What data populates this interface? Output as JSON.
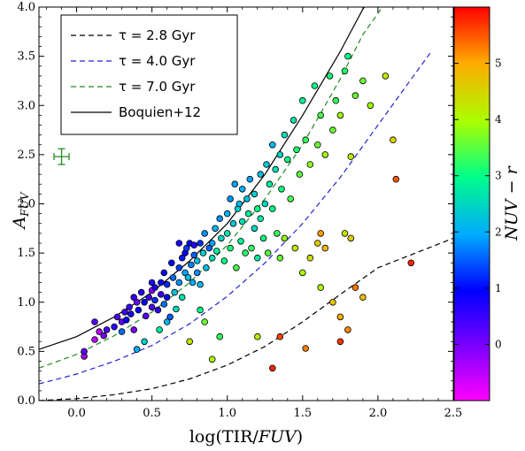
{
  "chart_data": {
    "type": "scatter",
    "xlabel": "log(TIR/FUV)",
    "ylabel": "A_FUV",
    "xlim": [
      -0.25,
      2.5
    ],
    "ylim": [
      0.0,
      4.0
    ],
    "xticks": [
      0.0,
      0.5,
      1.0,
      1.5,
      2.0,
      2.5
    ],
    "xtick_labels": [
      "0.0",
      "0.5",
      "1.0",
      "1.5",
      "2.0",
      "2.5"
    ],
    "yticks": [
      0.0,
      0.5,
      1.0,
      1.5,
      2.0,
      2.5,
      3.0,
      3.5,
      4.0
    ],
    "ytick_labels": [
      "0.0",
      "0.5",
      "1.0",
      "1.5",
      "2.0",
      "2.5",
      "3.0",
      "3.5",
      "4.0"
    ],
    "grid": false,
    "legend_position": "top-left",
    "colorbar": {
      "label": "NUV − r",
      "range": [
        -1.0,
        6.0
      ],
      "ticks": [
        0,
        1,
        2,
        3,
        4,
        5
      ],
      "tick_labels": [
        "0",
        "1",
        "2",
        "3",
        "4",
        "5"
      ],
      "colormap": "gist_rainbow"
    },
    "legend": [
      {
        "label": "τ = 2.8 Gyr",
        "color": "#000000",
        "dash": true
      },
      {
        "label": "τ = 4.0 Gyr",
        "color": "#2222cc",
        "dash": true
      },
      {
        "label": "τ = 7.0 Gyr",
        "color": "#228b22",
        "dash": true
      },
      {
        "label": "Boquien+12",
        "color": "#000000",
        "dash": false
      }
    ],
    "curves": [
      {
        "name": "τ = 2.8 Gyr",
        "color": "#000000",
        "dash": true,
        "points": [
          [
            -0.25,
            0.0
          ],
          [
            0.0,
            0.02
          ],
          [
            0.25,
            0.06
          ],
          [
            0.5,
            0.12
          ],
          [
            0.75,
            0.22
          ],
          [
            1.0,
            0.36
          ],
          [
            1.25,
            0.55
          ],
          [
            1.5,
            0.8
          ],
          [
            1.75,
            1.08
          ],
          [
            2.0,
            1.35
          ],
          [
            2.25,
            1.5
          ],
          [
            2.5,
            1.65
          ]
        ]
      },
      {
        "name": "τ = 4.0 Gyr",
        "color": "#2222cc",
        "dash": true,
        "points": [
          [
            -0.25,
            0.17
          ],
          [
            0.0,
            0.27
          ],
          [
            0.25,
            0.4
          ],
          [
            0.5,
            0.56
          ],
          [
            0.75,
            0.78
          ],
          [
            1.0,
            1.06
          ],
          [
            1.25,
            1.4
          ],
          [
            1.5,
            1.8
          ],
          [
            1.75,
            2.27
          ],
          [
            2.0,
            2.8
          ],
          [
            2.25,
            3.33
          ],
          [
            2.35,
            3.54
          ]
        ]
      },
      {
        "name": "τ = 7.0 Gyr",
        "color": "#228b22",
        "dash": true,
        "points": [
          [
            -0.25,
            0.33
          ],
          [
            0.0,
            0.47
          ],
          [
            0.25,
            0.66
          ],
          [
            0.5,
            0.9
          ],
          [
            0.75,
            1.2
          ],
          [
            1.0,
            1.58
          ],
          [
            1.25,
            2.05
          ],
          [
            1.5,
            2.6
          ],
          [
            1.75,
            3.27
          ],
          [
            1.9,
            3.72
          ],
          [
            2.03,
            4.0
          ]
        ]
      },
      {
        "name": "Boquien+12",
        "color": "#000000",
        "dash": false,
        "points": [
          [
            -0.25,
            0.52
          ],
          [
            0.0,
            0.65
          ],
          [
            0.25,
            0.85
          ],
          [
            0.5,
            1.1
          ],
          [
            0.75,
            1.42
          ],
          [
            1.0,
            1.8
          ],
          [
            1.25,
            2.3
          ],
          [
            1.5,
            2.9
          ],
          [
            1.75,
            3.55
          ],
          [
            1.9,
            3.98
          ],
          [
            1.91,
            4.0
          ]
        ]
      }
    ],
    "errorbar": {
      "x": -0.1,
      "y": 2.48,
      "xerr": 0.05,
      "yerr": 0.08,
      "color": "#228b22"
    },
    "points": [
      [
        0.05,
        0.45,
        -0.3
      ],
      [
        0.05,
        0.5,
        0.2
      ],
      [
        0.12,
        0.62,
        -0.5
      ],
      [
        0.18,
        0.66,
        0.0
      ],
      [
        0.2,
        0.72,
        0.4
      ],
      [
        0.12,
        0.8,
        0.3
      ],
      [
        0.25,
        0.75,
        0.6
      ],
      [
        0.27,
        0.85,
        0.3
      ],
      [
        0.3,
        0.8,
        0.2
      ],
      [
        0.32,
        0.9,
        0.5
      ],
      [
        0.35,
        0.95,
        0.5
      ],
      [
        0.36,
        0.88,
        0.8
      ],
      [
        0.38,
        1.05,
        0.6
      ],
      [
        0.4,
        1.0,
        0.1
      ],
      [
        0.41,
        0.92,
        0.9
      ],
      [
        0.43,
        1.1,
        0.7
      ],
      [
        0.45,
        1.0,
        1.0
      ],
      [
        0.46,
        0.86,
        0.3
      ],
      [
        0.48,
        1.05,
        0.5
      ],
      [
        0.5,
        1.12,
        -0.2
      ],
      [
        0.5,
        0.95,
        0.4
      ],
      [
        0.52,
        1.15,
        0.8
      ],
      [
        0.52,
        1.02,
        1.2
      ],
      [
        0.54,
        0.92,
        0.6
      ],
      [
        0.56,
        1.2,
        1.0
      ],
      [
        0.56,
        1.08,
        0.5
      ],
      [
        0.58,
        1.3,
        0.8
      ],
      [
        0.6,
        1.18,
        1.2
      ],
      [
        0.6,
        1.05,
        0.9
      ],
      [
        0.62,
        0.85,
        1.5
      ],
      [
        0.63,
        1.4,
        1.0
      ],
      [
        0.64,
        1.25,
        1.6
      ],
      [
        0.65,
        1.1,
        2.3
      ],
      [
        0.66,
        0.93,
        2.5
      ],
      [
        0.68,
        1.35,
        1.3
      ],
      [
        0.68,
        1.2,
        1.8
      ],
      [
        0.7,
        1.45,
        1.1
      ],
      [
        0.7,
        1.05,
        2.6
      ],
      [
        0.72,
        1.3,
        1.9
      ],
      [
        0.72,
        1.5,
        0.9
      ],
      [
        0.73,
        1.55,
        1.3
      ],
      [
        0.74,
        1.25,
        2.2
      ],
      [
        0.75,
        1.6,
        0.9
      ],
      [
        0.76,
        1.38,
        1.7
      ],
      [
        0.77,
        1.2,
        2.0
      ],
      [
        0.78,
        1.48,
        1.5
      ],
      [
        0.78,
        1.58,
        0.7
      ],
      [
        0.8,
        1.42,
        2.2
      ],
      [
        0.8,
        1.3,
        1.8
      ],
      [
        0.82,
        1.6,
        1.2
      ],
      [
        0.82,
        1.18,
        2.1
      ],
      [
        0.84,
        1.5,
        2.4
      ],
      [
        0.85,
        1.7,
        1.8
      ],
      [
        0.86,
        1.35,
        2.2
      ],
      [
        0.88,
        1.55,
        1.5
      ],
      [
        0.9,
        1.6,
        1.9
      ],
      [
        0.9,
        1.45,
        2.6
      ],
      [
        0.92,
        1.75,
        2.1
      ],
      [
        0.93,
        1.52,
        2.8
      ],
      [
        0.95,
        1.85,
        1.8
      ],
      [
        0.96,
        1.65,
        2.5
      ],
      [
        0.98,
        1.42,
        3.0
      ],
      [
        1.0,
        1.9,
        2.0
      ],
      [
        1.0,
        1.7,
        2.7
      ],
      [
        1.02,
        2.05,
        1.8
      ],
      [
        1.02,
        1.55,
        3.1
      ],
      [
        1.04,
        1.8,
        2.3
      ],
      [
        1.05,
        2.2,
        1.9
      ],
      [
        1.06,
        1.35,
        3.4
      ],
      [
        1.07,
        1.95,
        2.4
      ],
      [
        1.08,
        2.0,
        2.1
      ],
      [
        1.09,
        1.62,
        2.9
      ],
      [
        1.1,
        2.15,
        2.0
      ],
      [
        1.1,
        1.82,
        2.6
      ],
      [
        1.12,
        1.5,
        3.2
      ],
      [
        1.13,
        2.05,
        2.2
      ],
      [
        1.14,
        1.9,
        2.8
      ],
      [
        1.15,
        2.25,
        1.9
      ],
      [
        1.16,
        1.55,
        3.3
      ],
      [
        1.18,
        1.75,
        2.5
      ],
      [
        1.18,
        2.1,
        2.4
      ],
      [
        1.2,
        1.45,
        2.7
      ],
      [
        1.2,
        1.95,
        3.0
      ],
      [
        1.22,
        2.3,
        2.2
      ],
      [
        1.22,
        1.85,
        2.7
      ],
      [
        1.24,
        1.65,
        3.1
      ],
      [
        1.25,
        2.0,
        2.5
      ],
      [
        1.26,
        2.4,
        2.3
      ],
      [
        1.27,
        1.5,
        3.5
      ],
      [
        1.28,
        2.2,
        2.8
      ],
      [
        1.3,
        2.6,
        2.1
      ],
      [
        1.3,
        1.95,
        3.0
      ],
      [
        1.32,
        2.35,
        2.6
      ],
      [
        1.33,
        1.7,
        3.3
      ],
      [
        1.35,
        2.5,
        2.5
      ],
      [
        1.36,
        2.15,
        3.1
      ],
      [
        1.38,
        2.7,
        2.6
      ],
      [
        1.4,
        2.45,
        3.0
      ],
      [
        1.42,
        2.05,
        3.4
      ],
      [
        1.44,
        2.85,
        2.7
      ],
      [
        1.46,
        2.55,
        3.2
      ],
      [
        1.48,
        2.3,
        3.5
      ],
      [
        1.5,
        3.05,
        2.9
      ],
      [
        1.52,
        2.65,
        3.3
      ],
      [
        1.55,
        2.4,
        3.8
      ],
      [
        1.58,
        3.2,
        3.0
      ],
      [
        1.6,
        2.6,
        3.6
      ],
      [
        1.62,
        2.9,
        3.4
      ],
      [
        1.65,
        2.5,
        3.9
      ],
      [
        1.68,
        3.3,
        3.1
      ],
      [
        1.7,
        2.75,
        3.6
      ],
      [
        1.72,
        3.05,
        3.3
      ],
      [
        1.75,
        2.9,
        3.9
      ],
      [
        1.78,
        3.35,
        3.2
      ],
      [
        1.8,
        3.5,
        3.0
      ],
      [
        1.82,
        2.48,
        4.2
      ],
      [
        1.85,
        3.1,
        3.6
      ],
      [
        1.9,
        3.25,
        3.6
      ],
      [
        1.95,
        3.0,
        3.9
      ],
      [
        2.05,
        3.3,
        4.3
      ],
      [
        2.1,
        2.65,
        4.5
      ],
      [
        1.35,
        1.45,
        3.6
      ],
      [
        1.38,
        1.65,
        3.8
      ],
      [
        1.45,
        1.55,
        4.3
      ],
      [
        1.5,
        1.3,
        4.0
      ],
      [
        1.55,
        1.45,
        4.4
      ],
      [
        1.6,
        1.6,
        4.6
      ],
      [
        1.62,
        1.15,
        4.1
      ],
      [
        1.65,
        1.55,
        4.9
      ],
      [
        1.7,
        1.0,
        4.7
      ],
      [
        1.75,
        0.85,
        5.0
      ],
      [
        1.8,
        0.72,
        5.2
      ],
      [
        1.85,
        1.15,
        5.3
      ],
      [
        1.9,
        1.05,
        4.8
      ],
      [
        1.78,
        1.7,
        4.3
      ],
      [
        1.82,
        1.65,
        4.6
      ],
      [
        1.62,
        1.7,
        5.1
      ],
      [
        2.12,
        2.25,
        5.5
      ],
      [
        2.22,
        1.4,
        5.8
      ],
      [
        1.2,
        0.65,
        4.2
      ],
      [
        1.52,
        0.53,
        5.3
      ],
      [
        1.35,
        0.65,
        5.6
      ],
      [
        1.3,
        0.33,
        5.8
      ],
      [
        1.75,
        0.6,
        5.7
      ],
      [
        0.9,
        0.42,
        4.0
      ],
      [
        0.75,
        0.6,
        4.3
      ],
      [
        0.85,
        0.8,
        3.6
      ],
      [
        0.95,
        0.65,
        3.3
      ],
      [
        0.82,
        0.92,
        3.0
      ],
      [
        0.4,
        0.52,
        2.0
      ],
      [
        0.45,
        0.6,
        2.4
      ],
      [
        0.55,
        0.72,
        2.8
      ],
      [
        0.6,
        0.8,
        2.1
      ],
      [
        0.3,
        0.7,
        1.6
      ],
      [
        0.33,
        0.82,
        0.9
      ],
      [
        0.15,
        0.7,
        -0.4
      ],
      [
        0.38,
        0.72,
        0.0
      ],
      [
        0.58,
        0.98,
        1.6
      ],
      [
        0.68,
        1.6,
        0.8
      ],
      [
        0.5,
        1.2,
        0.7
      ]
    ]
  }
}
